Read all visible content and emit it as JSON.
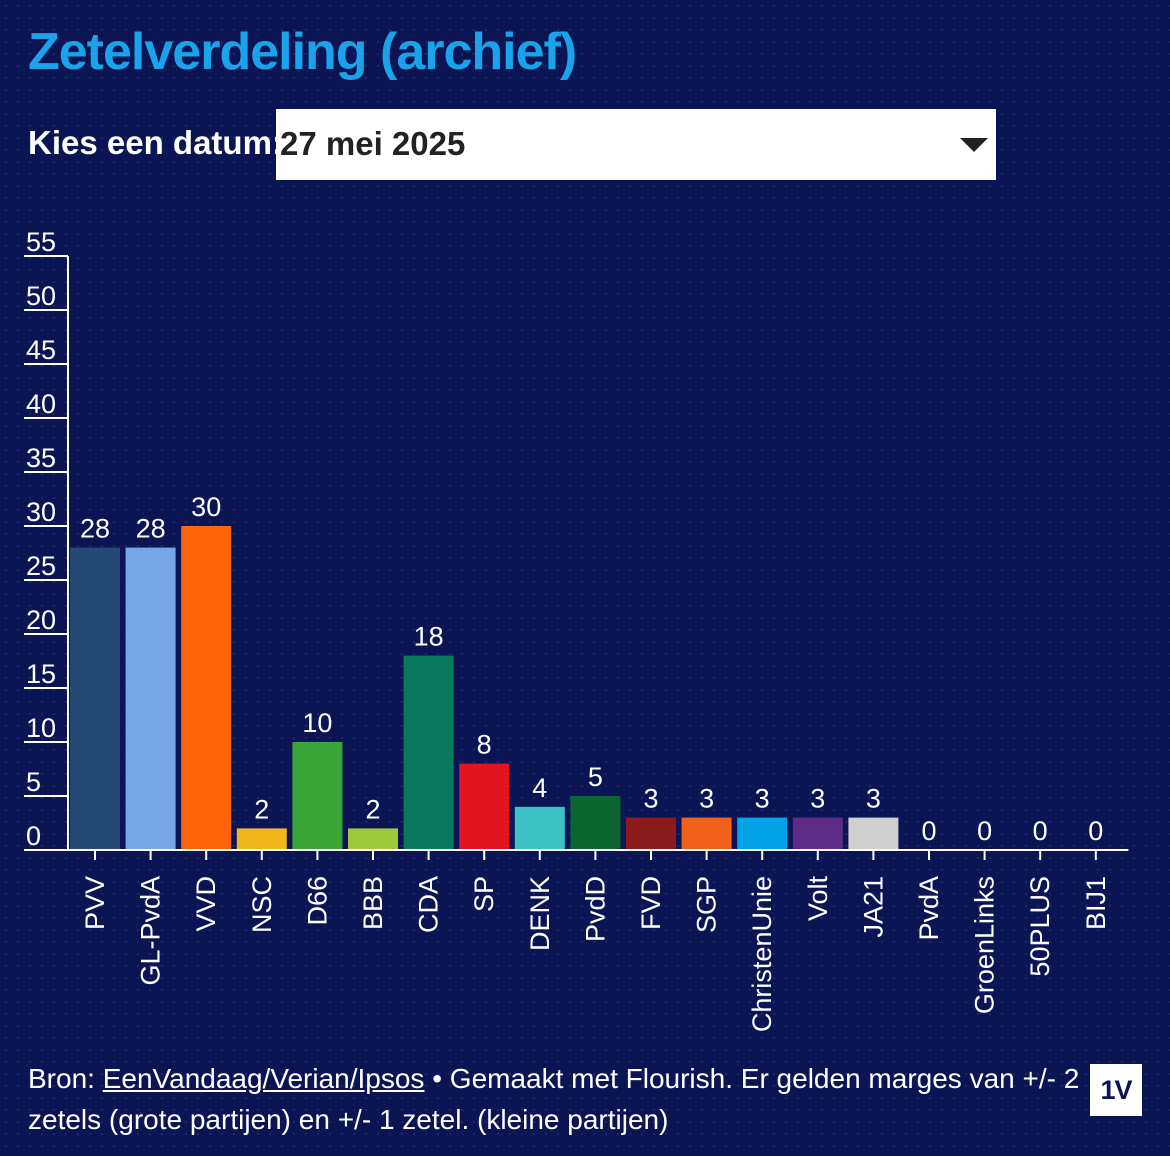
{
  "header": {
    "title": "Zetelverdeling (archief)",
    "date_label": "Kies een datum:",
    "selected_date": "27 mei 2025"
  },
  "chart_data": {
    "type": "bar",
    "categories": [
      "PVV",
      "GL-PvdA",
      "VVD",
      "NSC",
      "D66",
      "BBB",
      "CDA",
      "SP",
      "DENK",
      "PvdD",
      "FVD",
      "SGP",
      "ChristenUnie",
      "Volt",
      "JA21",
      "PvdA",
      "GroenLinks",
      "50PLUS",
      "BIJ1"
    ],
    "values": [
      28,
      28,
      30,
      2,
      10,
      2,
      18,
      8,
      4,
      5,
      3,
      3,
      3,
      3,
      3,
      0,
      0,
      0,
      0
    ],
    "colors": [
      "#234a75",
      "#77a7e6",
      "#fc650a",
      "#f3b71e",
      "#3aa437",
      "#9fc83b",
      "#0a7a5e",
      "#e1141f",
      "#3cc1c5",
      "#0a6530",
      "#8b1b1d",
      "#f06119",
      "#04a2e7",
      "#5e2b86",
      "#cfcfcf",
      "#cfcfcf",
      "#cfcfcf",
      "#cfcfcf",
      "#cfcfcf"
    ],
    "ylim": [
      0,
      55
    ],
    "yticks": [
      0,
      5,
      10,
      15,
      20,
      25,
      30,
      35,
      40,
      45,
      50,
      55
    ],
    "xlabel": "",
    "ylabel": ""
  },
  "footer": {
    "prefix": "Bron: ",
    "source_link": "EenVandaag/Verian/Ipsos",
    "text": " • Gemaakt met Flourish. Er gelden marges van +/- 2 zetels (grote partijen) en +/- 1 zetel. (kleine partijen)"
  },
  "logo": {
    "text": "1V"
  }
}
